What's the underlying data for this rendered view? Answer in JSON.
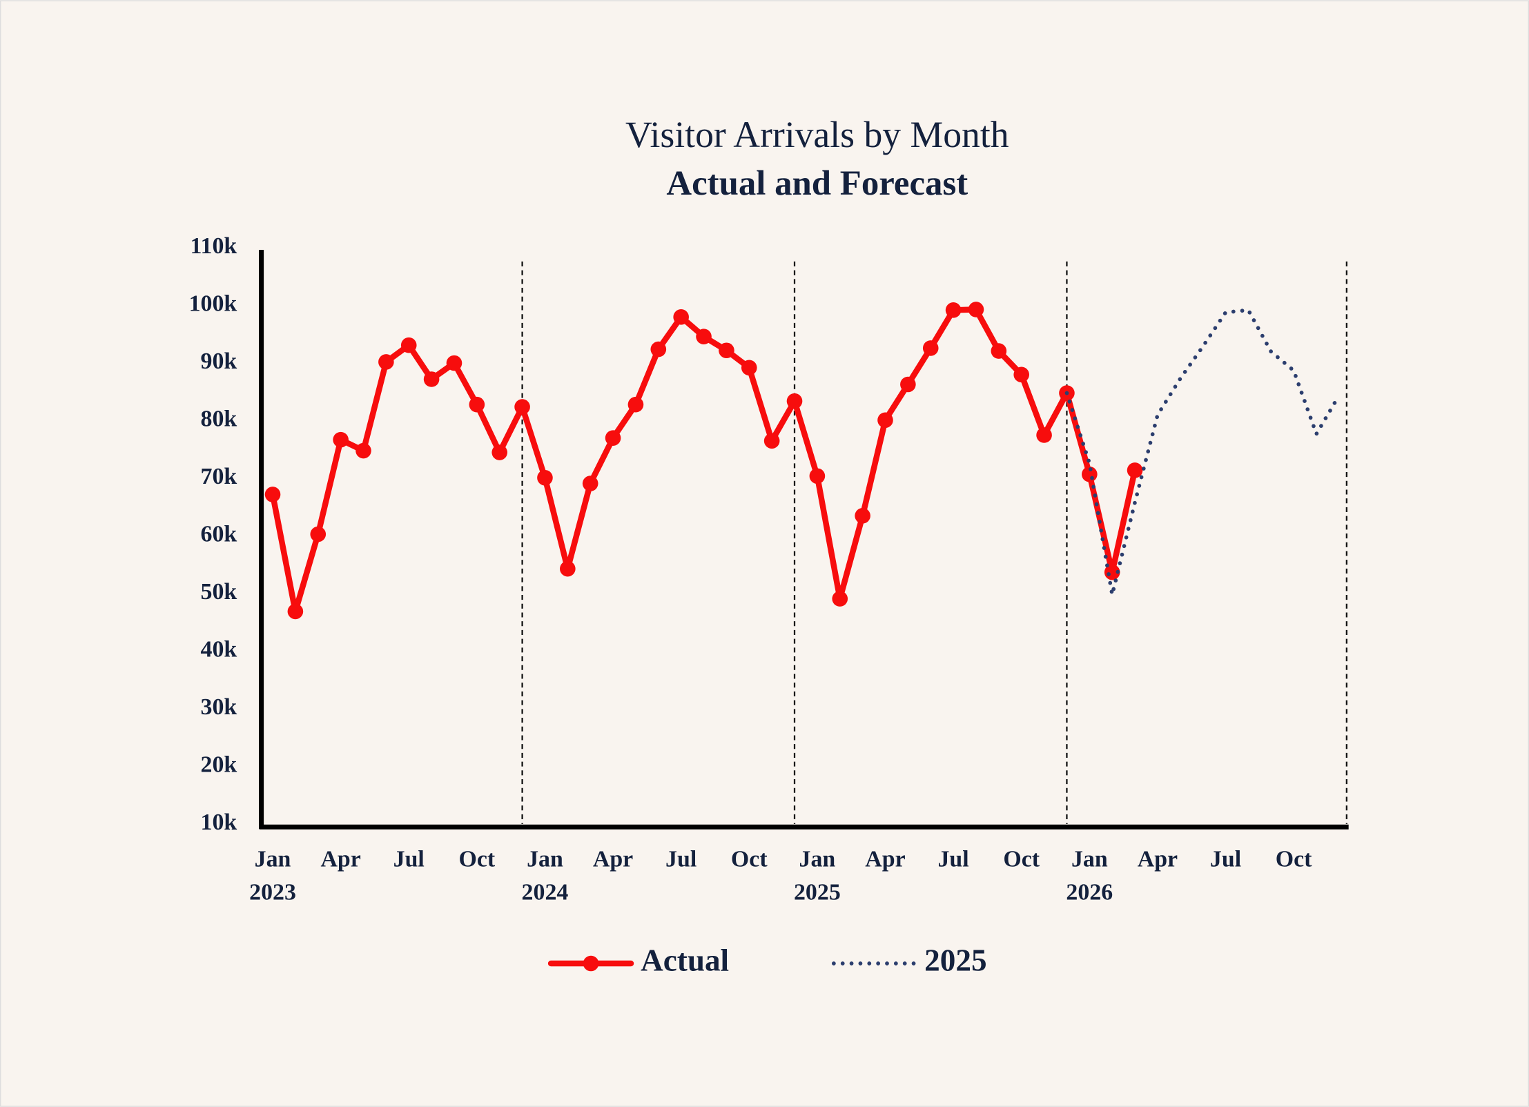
{
  "chart_data": {
    "type": "line",
    "title": "Visitor Arrivals by Month",
    "subtitle": "Actual and Forecast",
    "x": [
      "2023-01",
      "2023-02",
      "2023-03",
      "2023-04",
      "2023-05",
      "2023-06",
      "2023-07",
      "2023-08",
      "2023-09",
      "2023-10",
      "2023-11",
      "2023-12",
      "2024-01",
      "2024-02",
      "2024-03",
      "2024-04",
      "2024-05",
      "2024-06",
      "2024-07",
      "2024-08",
      "2024-09",
      "2024-10",
      "2024-11",
      "2024-12",
      "2025-01",
      "2025-02",
      "2025-03",
      "2025-04",
      "2025-05",
      "2025-06",
      "2025-07",
      "2025-08",
      "2025-09",
      "2025-10",
      "2025-11",
      "2025-12",
      "2026-01",
      "2026-02",
      "2026-03",
      "2026-04",
      "2026-05",
      "2026-06",
      "2026-07",
      "2026-08",
      "2026-09",
      "2026-10",
      "2026-11",
      "2026-12"
    ],
    "series": [
      {
        "name": "Actual",
        "color": "#f70d0d",
        "style": "solid-markers",
        "values": [
          67200,
          46900,
          60300,
          76700,
          74800,
          90200,
          93100,
          87200,
          90000,
          82800,
          74500,
          82400,
          70100,
          54300,
          69100,
          77000,
          82800,
          92400,
          98000,
          94600,
          92200,
          89200,
          76500,
          83400,
          70400,
          49100,
          63500,
          80100,
          86300,
          92600,
          99200,
          99300,
          92100,
          88000,
          77500,
          84800,
          70700,
          53700,
          71400,
          null,
          null,
          null,
          null,
          null,
          null,
          null,
          null,
          null
        ]
      },
      {
        "name": "2025",
        "color": "#2c3e6e",
        "style": "dotted",
        "values": [
          null,
          null,
          null,
          null,
          null,
          null,
          null,
          null,
          null,
          null,
          null,
          null,
          null,
          null,
          null,
          null,
          null,
          null,
          null,
          null,
          null,
          null,
          null,
          null,
          null,
          null,
          null,
          null,
          null,
          null,
          null,
          null,
          null,
          null,
          null,
          84800,
          72600,
          49800,
          65800,
          81000,
          87300,
          92900,
          98800,
          99200,
          92000,
          88700,
          77700,
          84400
        ]
      }
    ],
    "xlim": [
      "2022-12-16",
      "2026-12-11"
    ],
    "xticks": [
      {
        "value": "2023-01",
        "label": "Jan",
        "year": "2023"
      },
      {
        "value": "2023-04",
        "label": "Apr"
      },
      {
        "value": "2023-07",
        "label": "Jul"
      },
      {
        "value": "2023-10",
        "label": "Oct"
      },
      {
        "value": "2024-01",
        "label": "Jan",
        "year": "2024"
      },
      {
        "value": "2024-04",
        "label": "Apr"
      },
      {
        "value": "2024-07",
        "label": "Jul"
      },
      {
        "value": "2024-10",
        "label": "Oct"
      },
      {
        "value": "2025-01",
        "label": "Jan",
        "year": "2025"
      },
      {
        "value": "2025-04",
        "label": "Apr"
      },
      {
        "value": "2025-07",
        "label": "Jul"
      },
      {
        "value": "2025-10",
        "label": "Oct"
      },
      {
        "value": "2026-01",
        "label": "Jan",
        "year": "2026"
      },
      {
        "value": "2026-04",
        "label": "Apr"
      },
      {
        "value": "2026-07",
        "label": "Jul"
      },
      {
        "value": "2026-10",
        "label": "Oct"
      }
    ],
    "ylim": [
      10000,
      110000
    ],
    "yticks": [
      {
        "value": 10000,
        "label": "10k"
      },
      {
        "value": 20000,
        "label": "20k"
      },
      {
        "value": 30000,
        "label": "30k"
      },
      {
        "value": 40000,
        "label": "40k"
      },
      {
        "value": 50000,
        "label": "50k"
      },
      {
        "value": 60000,
        "label": "60k"
      },
      {
        "value": 70000,
        "label": "70k"
      },
      {
        "value": 80000,
        "label": "80k"
      },
      {
        "value": 90000,
        "label": "90k"
      },
      {
        "value": 100000,
        "label": "100k"
      },
      {
        "value": 110000,
        "label": "110k"
      }
    ],
    "vlines": [
      "2023-12",
      "2024-12",
      "2025-12",
      "2026-12-11"
    ],
    "grid": false,
    "legend": "bottom"
  }
}
